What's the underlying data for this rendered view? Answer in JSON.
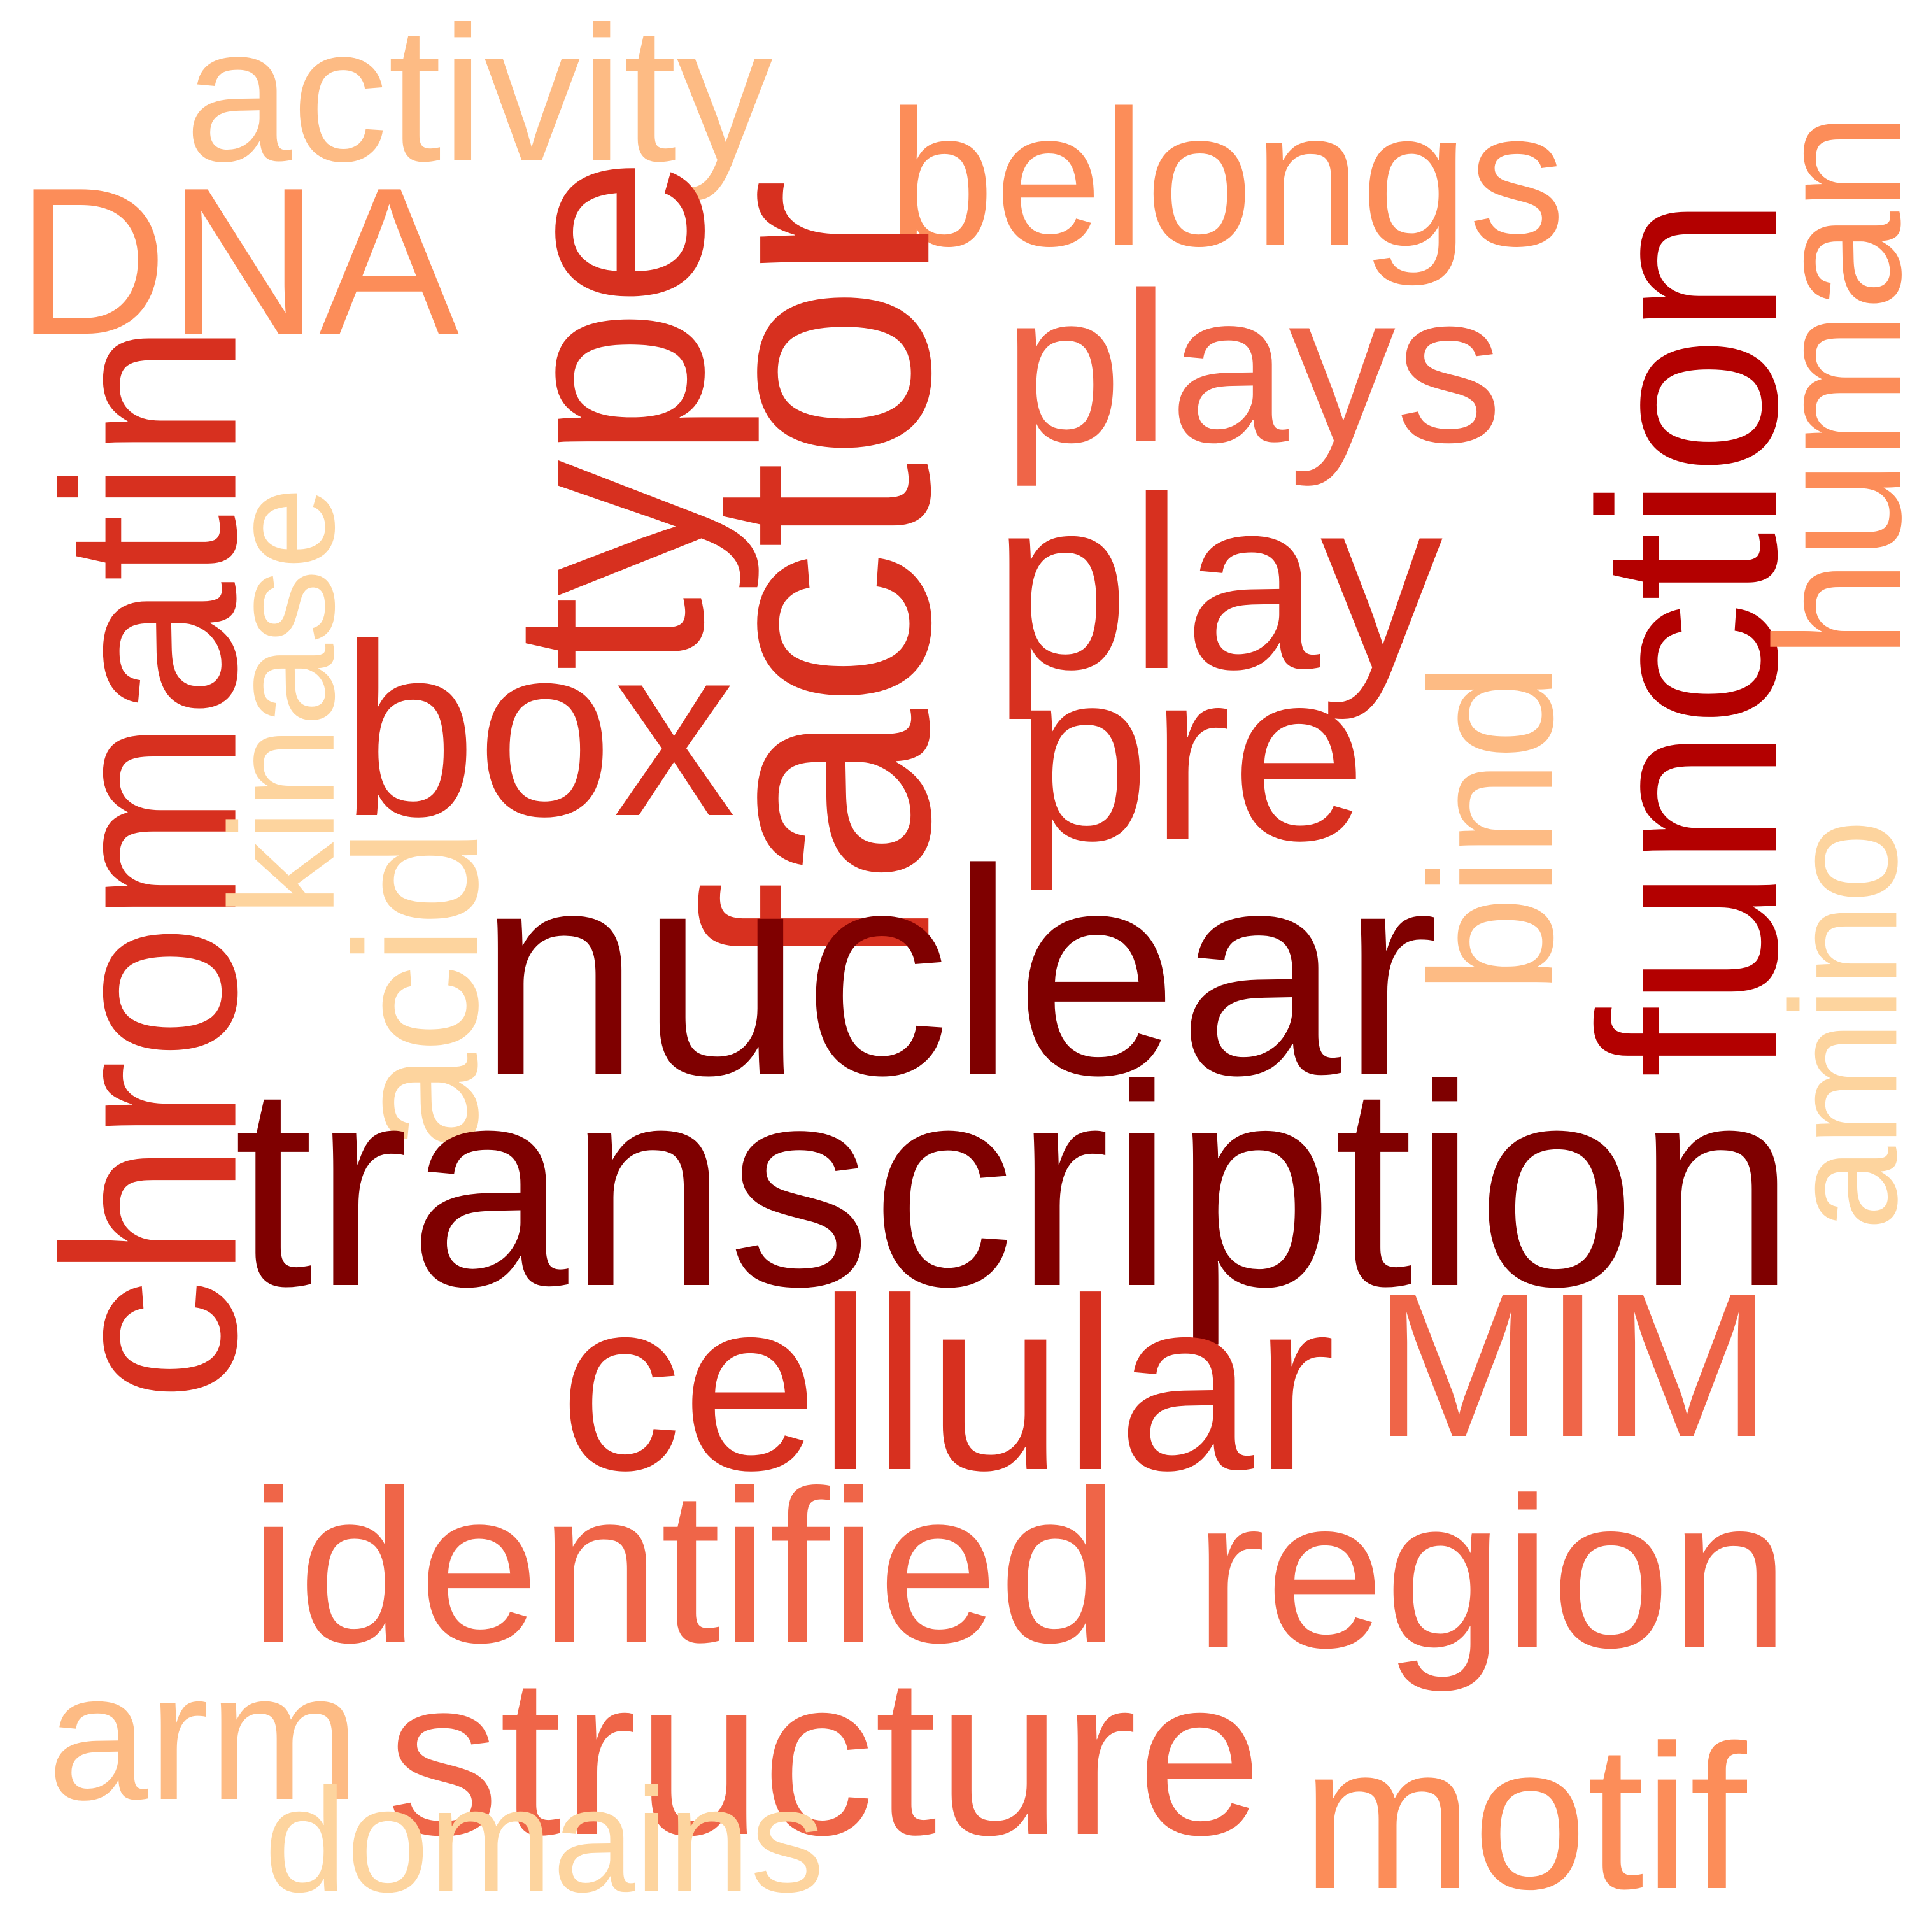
{
  "words": [
    {
      "text": "activity",
      "color": "#fdbb84",
      "rotated": false
    },
    {
      "text": "belongs",
      "color": "#fc8d59",
      "rotated": false
    },
    {
      "text": "DNA",
      "color": "#fc8d59",
      "rotated": false
    },
    {
      "text": "type",
      "color": "#d7301f",
      "rotated": true
    },
    {
      "text": "factor",
      "color": "#d7301f",
      "rotated": true
    },
    {
      "text": "plays",
      "color": "#ef6548",
      "rotated": false
    },
    {
      "text": "function",
      "color": "#b30000",
      "rotated": true
    },
    {
      "text": "human",
      "color": "#fc8d59",
      "rotated": true
    },
    {
      "text": "chromatin",
      "color": "#d7301f",
      "rotated": true
    },
    {
      "text": "play",
      "color": "#d7301f",
      "rotated": false
    },
    {
      "text": "kinase",
      "color": "#fdd49e",
      "rotated": true
    },
    {
      "text": "box",
      "color": "#d7301f",
      "rotated": false
    },
    {
      "text": "pre",
      "color": "#d7301f",
      "rotated": false
    },
    {
      "text": "bind",
      "color": "#fdbb84",
      "rotated": true
    },
    {
      "text": "acid",
      "color": "#fdd49e",
      "rotated": true
    },
    {
      "text": "amino",
      "color": "#fdd49e",
      "rotated": true
    },
    {
      "text": "nuclear",
      "color": "#7f0000",
      "rotated": false
    },
    {
      "text": "transcription",
      "color": "#7f0000",
      "rotated": false
    },
    {
      "text": "cellular",
      "color": "#d7301f",
      "rotated": false
    },
    {
      "text": "MIM",
      "color": "#ef6548",
      "rotated": false
    },
    {
      "text": "identified",
      "color": "#ef6548",
      "rotated": false
    },
    {
      "text": "region",
      "color": "#ef6548",
      "rotated": false
    },
    {
      "text": "arm",
      "color": "#fdbb84",
      "rotated": false
    },
    {
      "text": "structure",
      "color": "#ef6548",
      "rotated": false
    },
    {
      "text": "motif",
      "color": "#fc8d59",
      "rotated": false
    },
    {
      "text": "domains",
      "color": "#fdd49e",
      "rotated": false
    }
  ]
}
